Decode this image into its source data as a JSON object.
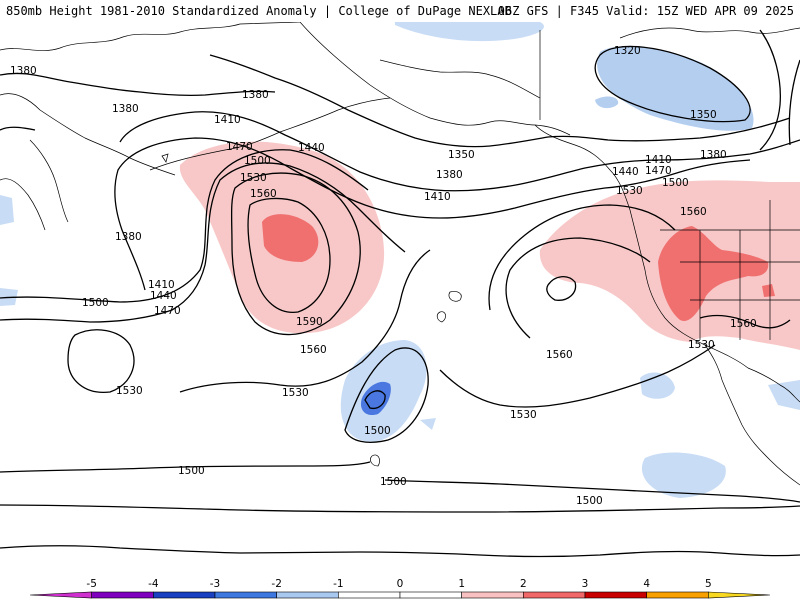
{
  "header": {
    "left_title": "850mb Height 1981-2010 Standardized Anomaly | College of DuPage NEXLAB",
    "right_title": "06Z GFS | F345 Valid: 15Z WED APR 09 2025"
  },
  "contour_labels": {
    "c1320": "1320",
    "c1350": "1350",
    "c1380": "1380",
    "c1410": "1410",
    "c1440": "1440",
    "c1470": "1470",
    "c1500": "1500",
    "c1530": "1530",
    "c1560": "1560",
    "c1590": "1590"
  },
  "colorbar": {
    "ticks": [
      "-5",
      "-4",
      "-3",
      "-2",
      "-1",
      "0",
      "1",
      "2",
      "3",
      "4",
      "5"
    ],
    "colors": [
      "#d030d0",
      "#8000c0",
      "#1840c0",
      "#3c78e0",
      "#a8c8f0",
      "#ffffff",
      "#ffffff",
      "#f8c0c0",
      "#f06868",
      "#c80000",
      "#f8a000",
      "#f8d820"
    ]
  }
}
